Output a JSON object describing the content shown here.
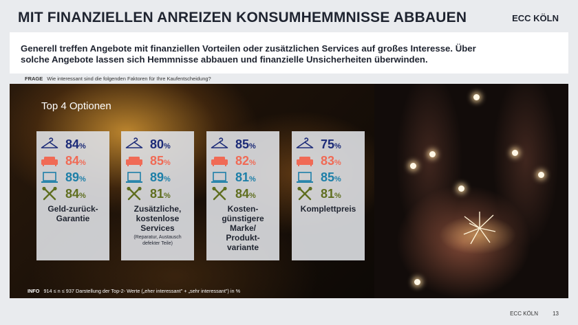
{
  "header": {
    "title": "MIT FINANZIELLEN ANREIZEN KONSUMHEMMNISSE ABBAUEN",
    "brand": "ECC KÖLN"
  },
  "intro": {
    "line1": "Generell treffen Angebote mit finanziellen Vorteilen oder zusätzlichen Services auf großes Interesse. Über",
    "line2": "solche Angebote lassen sich Hemmnisse abbauen und finanzielle Unsicherheiten überwinden."
  },
  "question": {
    "label": "FRAGE",
    "text": "Wie interessant sind die folgenden Faktoren für Ihre Kaufentscheidung?"
  },
  "panel": {
    "heading": "Top 4 Optionen",
    "percent_sign": "%",
    "icons": [
      "clothes-hanger-icon",
      "sofa-icon",
      "laptop-icon",
      "tools-icon"
    ],
    "colors": {
      "navy": "#1c2b78",
      "coral": "#f06a55",
      "teal": "#1d7fa8",
      "olive": "#5f6e1f"
    },
    "options": [
      {
        "values": [
          "84",
          "84",
          "89",
          "84"
        ],
        "label_lines": [
          "Geld-zurück-",
          "Garantie"
        ],
        "sub_lines": []
      },
      {
        "values": [
          "80",
          "85",
          "89",
          "81"
        ],
        "label_lines": [
          "Zusätzliche,",
          "kostenlose",
          "Services"
        ],
        "sub_lines": [
          "(Reparatur, Austausch",
          "defekter Teile)"
        ]
      },
      {
        "values": [
          "85",
          "82",
          "81",
          "84"
        ],
        "label_lines": [
          "Kosten-",
          "günstigere",
          "Marke/",
          "Produkt-",
          "variante"
        ],
        "sub_lines": []
      },
      {
        "values": [
          "75",
          "83",
          "85",
          "81"
        ],
        "label_lines": [
          "Komplettpreis"
        ],
        "sub_lines": []
      }
    ]
  },
  "info": {
    "label": "INFO",
    "text": "914 ≤ n ≤ 937 Darstellung der Top-2- Werte („eher interessant\" + „sehr interessant\") in %"
  },
  "footer": {
    "brand": "ECC KÖLN",
    "page": "13"
  }
}
